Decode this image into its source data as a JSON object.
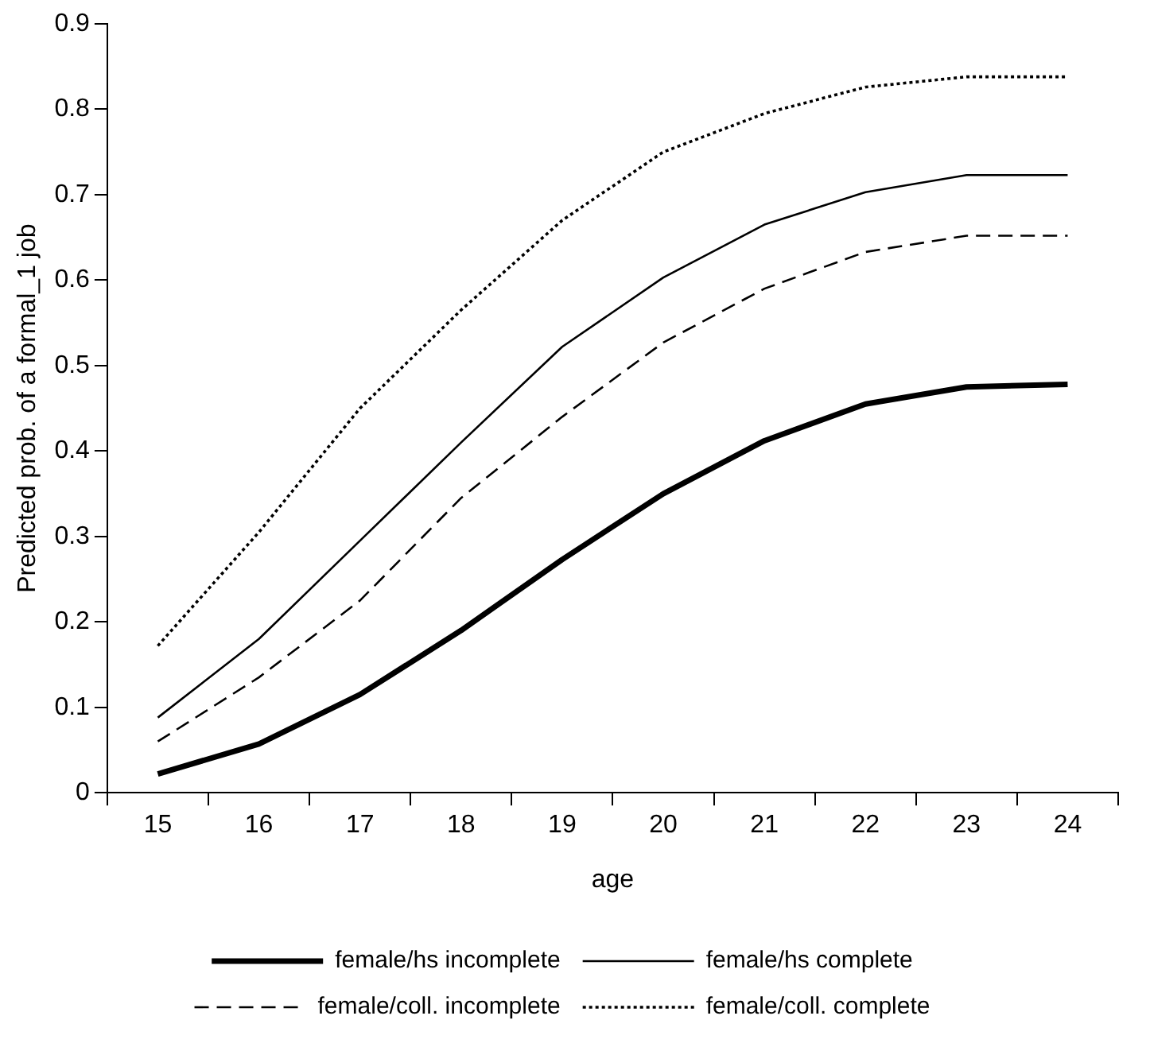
{
  "chart_data": {
    "type": "line",
    "xlabel": "age",
    "ylabel": "Predicted prob. of a formal_1 job",
    "categories": [
      "15",
      "16",
      "17",
      "18",
      "19",
      "20",
      "21",
      "22",
      "23",
      "24"
    ],
    "ylim": [
      0,
      0.9
    ],
    "yticks": [
      {
        "value": 0,
        "label": "0"
      },
      0.1,
      0.2,
      0.3,
      0.4,
      0.5,
      0.6,
      0.7,
      0.8,
      0.9
    ],
    "grid": false,
    "legend": "bottom",
    "marker": "none",
    "series": [
      {
        "name": "female/hs incomplete",
        "color": "#000000",
        "line_style": "solid",
        "values": [
          0.022,
          0.057,
          0.115,
          0.19,
          0.273,
          0.35,
          0.412,
          0.455,
          0.475,
          0.478
        ]
      },
      {
        "name": "female/hs complete",
        "color": "#000000",
        "line_style": "solid",
        "values": [
          0.088,
          0.18,
          0.295,
          0.41,
          0.522,
          0.603,
          0.665,
          0.703,
          0.723,
          0.723
        ]
      },
      {
        "name": "female/coll. incomplete",
        "color": "#000000",
        "line_style": "dashed",
        "values": [
          0.06,
          0.135,
          0.225,
          0.345,
          0.44,
          0.527,
          0.59,
          0.633,
          0.652,
          0.652
        ]
      },
      {
        "name": "female/coll. complete",
        "color": "#000000",
        "line_style": "dotted",
        "values": [
          0.172,
          0.305,
          0.45,
          0.565,
          0.67,
          0.75,
          0.795,
          0.826,
          0.838,
          0.838
        ]
      }
    ]
  }
}
